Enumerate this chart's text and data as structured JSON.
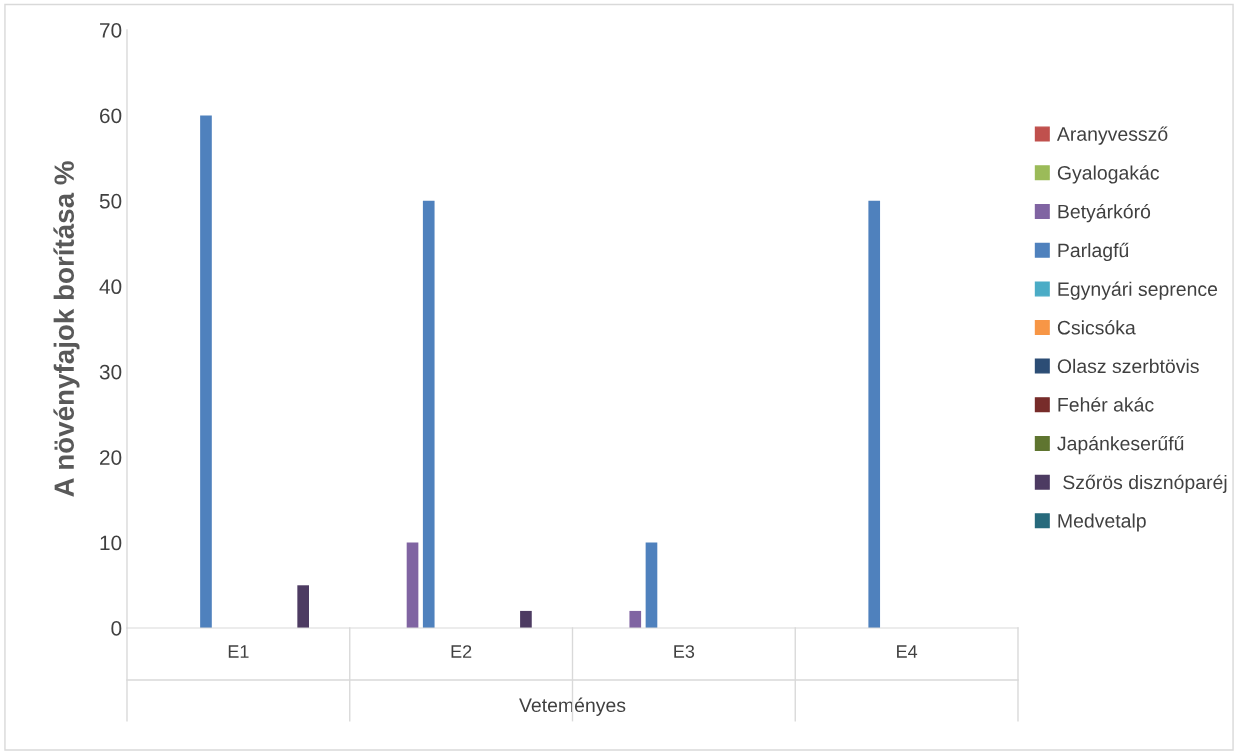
{
  "chart_data": {
    "type": "bar",
    "xlabel": "Veteményes",
    "ylabel": "A növényfajok borítása %",
    "categories": [
      "E1",
      "E2",
      "E3",
      "E4"
    ],
    "series": [
      {
        "name": "Aranyvessző",
        "color": "#c0504d",
        "values": [
          0,
          0,
          0,
          0
        ]
      },
      {
        "name": "Gyalogakác",
        "color": "#9bbb59",
        "values": [
          0,
          0,
          0,
          0
        ]
      },
      {
        "name": "Betyárkóró",
        "color": "#8064a2",
        "values": [
          0,
          10,
          2,
          0
        ]
      },
      {
        "name": "Parlagfű",
        "color": "#4f81bd",
        "values": [
          60,
          50,
          10,
          50
        ]
      },
      {
        "name": "Egynyári seprence",
        "color": "#4bacc6",
        "values": [
          0,
          0,
          0,
          0
        ]
      },
      {
        "name": "Csicsóka",
        "color": "#f79646",
        "values": [
          0,
          0,
          0,
          0
        ]
      },
      {
        "name": "Olasz szerbtövis",
        "color": "#2c4d75",
        "values": [
          0,
          0,
          0,
          0
        ]
      },
      {
        "name": "Fehér akác",
        "color": "#772c2a",
        "values": [
          0,
          0,
          0,
          0
        ]
      },
      {
        "name": "Japánkeserűfű",
        "color": "#5f7530",
        "values": [
          0,
          0,
          0,
          0
        ]
      },
      {
        "name": " Szőrös disznóparéj",
        "color": "#4d3b62",
        "values": [
          5,
          2,
          0,
          0
        ]
      },
      {
        "name": "Medvetalp",
        "color": "#276a7c",
        "values": [
          0,
          0,
          0,
          0
        ]
      }
    ],
    "ylim": [
      0,
      70
    ],
    "yticks": [
      0,
      10,
      20,
      30,
      40,
      50,
      60,
      70
    ],
    "grid": false,
    "legend": "right"
  }
}
